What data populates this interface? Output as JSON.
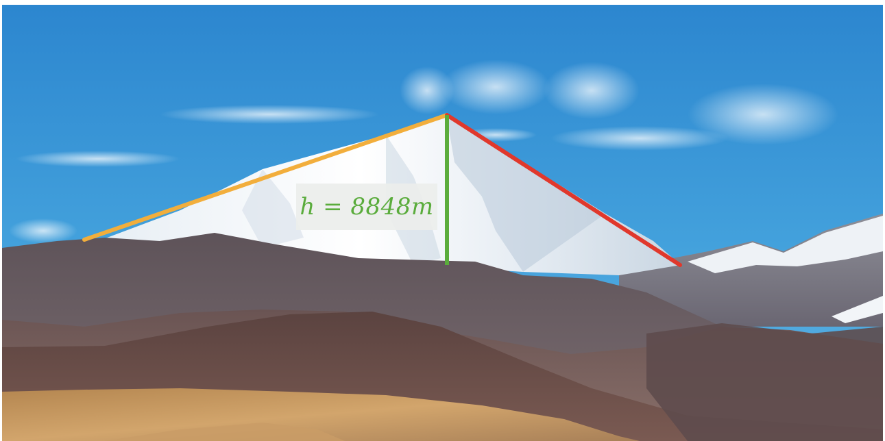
{
  "scene": {
    "subject": "snow-capped-mountain-peak",
    "colors": {
      "left_slope_line": "#f2ae3c",
      "right_slope_line": "#e0382c",
      "height_line": "#5aac3c",
      "height_label_text": "#5aac3c",
      "sky": "#3c9ad8"
    }
  },
  "annotation": {
    "label": "h = 8848m"
  }
}
